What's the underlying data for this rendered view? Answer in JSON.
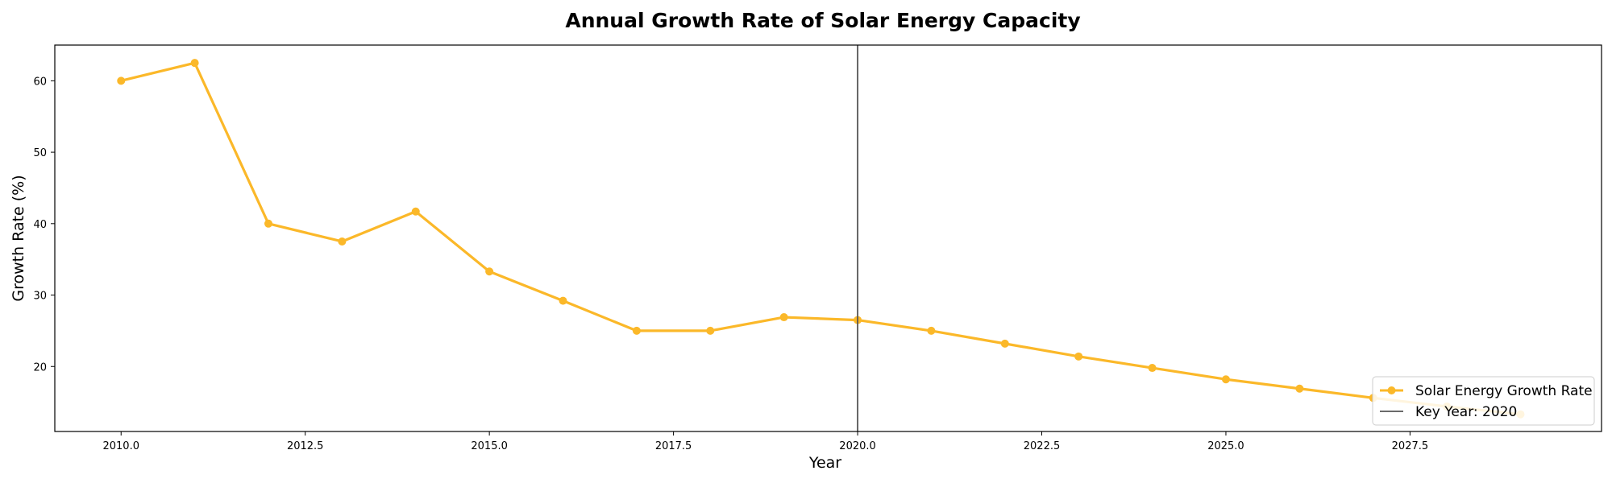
{
  "chart_data": {
    "type": "line",
    "title": "Annual Growth Rate of Solar Energy Capacity",
    "xlabel": "Year",
    "ylabel": "Growth Rate (%)",
    "xlim": [
      2009.1,
      2030.1
    ],
    "ylim": [
      10.9,
      65.0
    ],
    "xticks": [
      2010.0,
      2012.5,
      2015.0,
      2017.5,
      2020.0,
      2022.5,
      2025.0,
      2027.5
    ],
    "xtick_labels": [
      "2010.0",
      "2012.5",
      "2015.0",
      "2017.5",
      "2020.0",
      "2022.5",
      "2025.0",
      "2027.5"
    ],
    "yticks": [
      20,
      30,
      40,
      50,
      60
    ],
    "ytick_labels": [
      "20",
      "30",
      "40",
      "50",
      "60"
    ],
    "grid": false,
    "legend_position": "lower-right",
    "series": [
      {
        "name": "Solar Energy Growth Rate",
        "color": "#FBB829",
        "x": [
          2010,
          2011,
          2012,
          2013,
          2014,
          2015,
          2016,
          2017,
          2018,
          2019,
          2020,
          2021,
          2022,
          2023,
          2024,
          2025,
          2026,
          2027,
          2028,
          2029
        ],
        "values": [
          60.0,
          62.5,
          40.0,
          37.5,
          41.7,
          33.3,
          29.2,
          25.0,
          25.0,
          26.9,
          26.5,
          25.0,
          23.2,
          21.4,
          19.8,
          18.2,
          16.9,
          15.6,
          14.4,
          13.3
        ]
      }
    ],
    "vline": {
      "x": 2020,
      "label": "Key Year: 2020",
      "color": "#555555"
    }
  }
}
